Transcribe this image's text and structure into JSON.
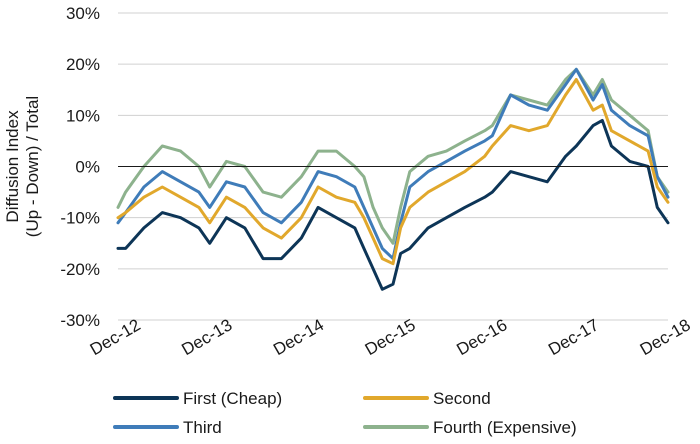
{
  "chart_data": {
    "type": "line",
    "title": "",
    "xlabel": "",
    "ylabel_line1": "Diffusion Index",
    "ylabel_line2": "(Up - Down) / Total",
    "ylim": [
      -30,
      30
    ],
    "yticks": [
      -30,
      -20,
      -10,
      0,
      10,
      20,
      30
    ],
    "ytick_labels": [
      "-30%",
      "-20%",
      "-10%",
      "0%",
      "10%",
      "20%",
      "30%"
    ],
    "xlim": [
      2012.917,
      2018.917
    ],
    "xticks": [
      2012.917,
      2013.917,
      2014.917,
      2015.917,
      2016.917,
      2017.917,
      2018.917
    ],
    "xtick_labels": [
      "Dec-12",
      "Dec-13",
      "Dec-14",
      "Dec-15",
      "Dec-16",
      "Dec-17",
      "Dec-18"
    ],
    "grid": "horizontal",
    "legend_placement": "bottom",
    "series": [
      {
        "name": "First (Cheap)",
        "color": "#0d3557",
        "x": [
          2012.917,
          2013.0,
          2013.2,
          2013.4,
          2013.6,
          2013.8,
          2013.917,
          2014.1,
          2014.3,
          2014.5,
          2014.7,
          2014.917,
          2015.1,
          2015.3,
          2015.5,
          2015.6,
          2015.7,
          2015.8,
          2015.917,
          2016.0,
          2016.1,
          2016.3,
          2016.5,
          2016.7,
          2016.917,
          2017.0,
          2017.2,
          2017.4,
          2017.6,
          2017.8,
          2017.917,
          2018.1,
          2018.2,
          2018.3,
          2018.5,
          2018.7,
          2018.8,
          2018.917
        ],
        "y": [
          -16,
          -16,
          -12,
          -9,
          -10,
          -12,
          -15,
          -10,
          -12,
          -18,
          -18,
          -14,
          -8,
          -10,
          -12,
          -16,
          -20,
          -24,
          -23,
          -17,
          -16,
          -12,
          -10,
          -8,
          -6,
          -5,
          -1,
          -2,
          -3,
          2,
          4,
          8,
          9,
          4,
          1,
          0,
          -8,
          -11
        ]
      },
      {
        "name": "Second",
        "color": "#e1a82c",
        "x": [
          2012.917,
          2013.0,
          2013.2,
          2013.4,
          2013.6,
          2013.8,
          2013.917,
          2014.1,
          2014.3,
          2014.5,
          2014.7,
          2014.917,
          2015.1,
          2015.3,
          2015.5,
          2015.6,
          2015.7,
          2015.8,
          2015.917,
          2016.0,
          2016.1,
          2016.3,
          2016.5,
          2016.7,
          2016.917,
          2017.0,
          2017.2,
          2017.4,
          2017.6,
          2017.8,
          2017.917,
          2018.1,
          2018.2,
          2018.3,
          2018.5,
          2018.7,
          2018.8,
          2018.917
        ],
        "y": [
          -10,
          -9,
          -6,
          -4,
          -6,
          -8,
          -11,
          -6,
          -8,
          -12,
          -14,
          -10,
          -4,
          -6,
          -7,
          -10,
          -14,
          -18,
          -19,
          -12,
          -8,
          -5,
          -3,
          -1,
          2,
          4,
          8,
          7,
          8,
          14,
          17,
          11,
          12,
          7,
          5,
          3,
          -4,
          -7
        ]
      },
      {
        "name": "Third",
        "color": "#3f7cb9",
        "x": [
          2012.917,
          2013.0,
          2013.2,
          2013.4,
          2013.6,
          2013.8,
          2013.917,
          2014.1,
          2014.3,
          2014.5,
          2014.7,
          2014.917,
          2015.1,
          2015.3,
          2015.5,
          2015.6,
          2015.7,
          2015.8,
          2015.917,
          2016.0,
          2016.1,
          2016.3,
          2016.5,
          2016.7,
          2016.917,
          2017.0,
          2017.2,
          2017.4,
          2017.6,
          2017.8,
          2017.917,
          2018.1,
          2018.2,
          2018.3,
          2018.5,
          2018.7,
          2018.8,
          2018.917
        ],
        "y": [
          -11,
          -9,
          -4,
          -1,
          -3,
          -5,
          -8,
          -3,
          -4,
          -9,
          -11,
          -7,
          -1,
          -2,
          -4,
          -8,
          -12,
          -16,
          -18,
          -11,
          -4,
          -1,
          1,
          3,
          5,
          6,
          14,
          12,
          11,
          16,
          19,
          13,
          16,
          11,
          8,
          6,
          -2,
          -6
        ]
      },
      {
        "name": "Fourth (Expensive)",
        "color": "#8db28d",
        "x": [
          2012.917,
          2013.0,
          2013.2,
          2013.4,
          2013.6,
          2013.8,
          2013.917,
          2014.1,
          2014.3,
          2014.5,
          2014.7,
          2014.917,
          2015.1,
          2015.3,
          2015.5,
          2015.6,
          2015.7,
          2015.8,
          2015.917,
          2016.0,
          2016.1,
          2016.3,
          2016.5,
          2016.7,
          2016.917,
          2017.0,
          2017.2,
          2017.4,
          2017.6,
          2017.8,
          2017.917,
          2018.1,
          2018.2,
          2018.3,
          2018.5,
          2018.7,
          2018.8,
          2018.917
        ],
        "y": [
          -8,
          -5,
          0,
          4,
          3,
          0,
          -4,
          1,
          0,
          -5,
          -6,
          -2,
          3,
          3,
          0,
          -2,
          -8,
          -12,
          -15,
          -8,
          -1,
          2,
          3,
          5,
          7,
          8,
          14,
          13,
          12,
          17,
          19,
          14,
          17,
          13,
          10,
          7,
          -2,
          -5
        ]
      }
    ]
  }
}
